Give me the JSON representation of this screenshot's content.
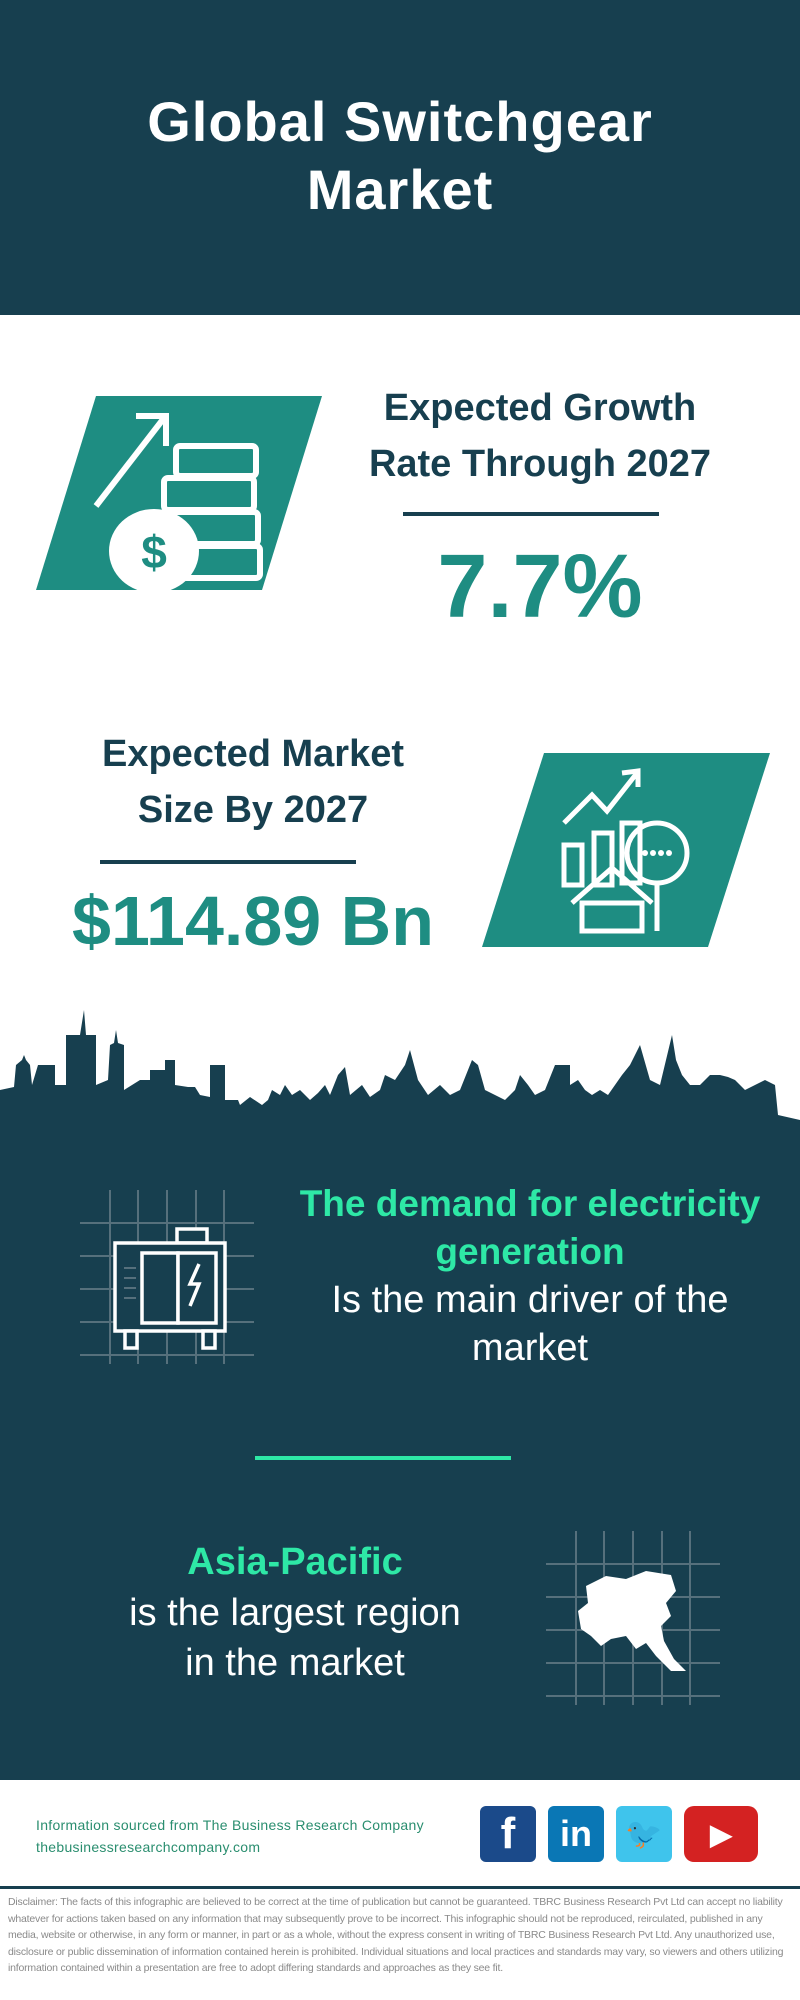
{
  "header": {
    "title_line1": "Global Switchgear",
    "title_line2": "Market"
  },
  "growth": {
    "heading_line1": "Expected Growth",
    "heading_line2": "Rate Through 2027",
    "value": "7.7%",
    "icon": "money-growth-icon"
  },
  "market_size": {
    "heading_line1": "Expected Market",
    "heading_line2": "Size By 2027",
    "value": "$114.89 Bn",
    "icon": "market-analysis-icon"
  },
  "driver": {
    "highlight_line1": "The demand for electricity",
    "highlight_line2": "generation",
    "text_line1": "Is the main driver of the",
    "text_line2": "market",
    "icon": "generator-icon"
  },
  "region": {
    "highlight": "Asia-Pacific",
    "text_line1": "is the largest region",
    "text_line2": "in the market",
    "icon": "asia-map-icon"
  },
  "footer": {
    "source": "Information sourced from The Business Research Company",
    "website": "thebusinessresearchcompany.com",
    "social": [
      {
        "name": "facebook",
        "glyph": "f",
        "color": "#1b4a8a"
      },
      {
        "name": "linkedin",
        "glyph": "in",
        "color": "#0a77b5"
      },
      {
        "name": "twitter",
        "glyph": "🐦",
        "color": "#3fc4ec"
      },
      {
        "name": "youtube",
        "glyph": "▶",
        "color": "#d42222"
      }
    ]
  },
  "disclaimer": "Disclaimer: The facts of this infographic are believed to be correct at the time of publication but cannot be guaranteed. TBRC Business Research Pvt Ltd can accept no liability whatever for actions taken based on any information that may subsequently prove to be incorrect. This infographic should not be reproduced, reirculated, published in any media, website or otherwise, in any form or manner, in part or as a whole, without the express consent in writing of TBRC Business Research Pvt Ltd. Any unauthorized use, disclosure or public dissemination of information contained herein is prohibited. Individual situations and local practices and standards may vary, so viewers and others utilizing information contained within a presentation are free to adopt differing standards and approaches as they see fit.",
  "colors": {
    "dark": "#173f4f",
    "teal": "#1e8d82",
    "mint": "#2ee8a6"
  }
}
